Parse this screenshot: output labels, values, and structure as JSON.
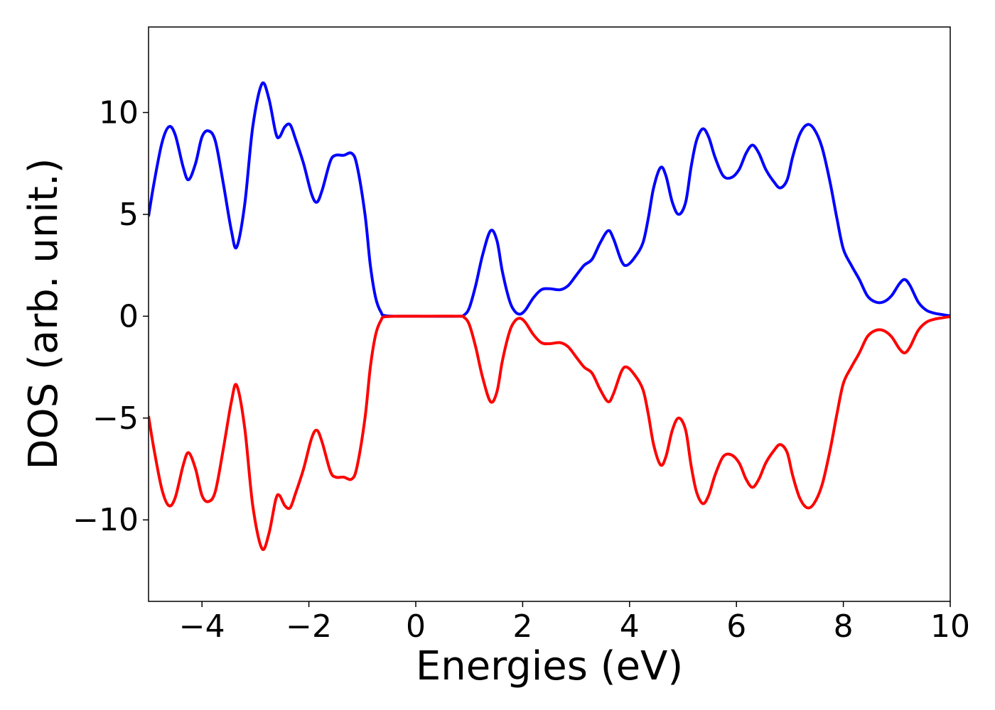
{
  "chart_data": {
    "type": "line",
    "xlabel": "Energies (eV)",
    "ylabel": "DOS (arb. unit.)",
    "xlim": [
      -5,
      10
    ],
    "ylim": [
      -14,
      14.2
    ],
    "xticks": [
      -4,
      -2,
      0,
      2,
      4,
      6,
      8,
      10
    ],
    "xtick_labels": [
      "−4",
      "−2",
      "0",
      "2",
      "4",
      "6",
      "8",
      "10"
    ],
    "yticks": [
      -10,
      -5,
      0,
      5,
      10
    ],
    "ytick_labels": [
      "−10",
      "−5",
      "0",
      "5",
      "10"
    ],
    "grid": false,
    "series": [
      {
        "color": "#0000ff",
        "points": [
          [
            -5.0,
            4.9
          ],
          [
            -4.9,
            6.5
          ],
          [
            -4.75,
            8.5
          ],
          [
            -4.62,
            9.3
          ],
          [
            -4.5,
            8.9
          ],
          [
            -4.35,
            7.3
          ],
          [
            -4.25,
            6.7
          ],
          [
            -4.12,
            7.5
          ],
          [
            -4.0,
            8.8
          ],
          [
            -3.88,
            9.1
          ],
          [
            -3.75,
            8.6
          ],
          [
            -3.6,
            6.5
          ],
          [
            -3.45,
            4.2
          ],
          [
            -3.35,
            3.4
          ],
          [
            -3.2,
            5.5
          ],
          [
            -3.05,
            9.3
          ],
          [
            -2.88,
            11.4
          ],
          [
            -2.75,
            10.7
          ],
          [
            -2.62,
            9.0
          ],
          [
            -2.55,
            8.8
          ],
          [
            -2.45,
            9.3
          ],
          [
            -2.35,
            9.4
          ],
          [
            -2.25,
            8.7
          ],
          [
            -2.1,
            7.5
          ],
          [
            -1.95,
            6.0
          ],
          [
            -1.85,
            5.6
          ],
          [
            -1.75,
            6.2
          ],
          [
            -1.6,
            7.6
          ],
          [
            -1.5,
            7.9
          ],
          [
            -1.35,
            7.9
          ],
          [
            -1.2,
            8.0
          ],
          [
            -1.1,
            7.4
          ],
          [
            -0.95,
            5.0
          ],
          [
            -0.85,
            2.5
          ],
          [
            -0.75,
            0.9
          ],
          [
            -0.65,
            0.2
          ],
          [
            -0.55,
            0.02
          ],
          [
            0.0,
            0.0
          ],
          [
            0.8,
            0.0
          ],
          [
            0.9,
            0.05
          ],
          [
            1.0,
            0.4
          ],
          [
            1.12,
            1.5
          ],
          [
            1.25,
            3.0
          ],
          [
            1.4,
            4.2
          ],
          [
            1.52,
            3.7
          ],
          [
            1.62,
            2.2
          ],
          [
            1.75,
            0.8
          ],
          [
            1.85,
            0.25
          ],
          [
            1.95,
            0.1
          ],
          [
            2.05,
            0.3
          ],
          [
            2.2,
            0.9
          ],
          [
            2.35,
            1.3
          ],
          [
            2.5,
            1.35
          ],
          [
            2.7,
            1.3
          ],
          [
            2.85,
            1.5
          ],
          [
            3.0,
            2.0
          ],
          [
            3.15,
            2.5
          ],
          [
            3.3,
            2.8
          ],
          [
            3.45,
            3.6
          ],
          [
            3.6,
            4.2
          ],
          [
            3.7,
            3.8
          ],
          [
            3.85,
            2.7
          ],
          [
            3.95,
            2.5
          ],
          [
            4.1,
            2.9
          ],
          [
            4.25,
            3.6
          ],
          [
            4.35,
            4.8
          ],
          [
            4.45,
            6.3
          ],
          [
            4.58,
            7.3
          ],
          [
            4.68,
            6.9
          ],
          [
            4.8,
            5.6
          ],
          [
            4.92,
            5.0
          ],
          [
            5.05,
            5.6
          ],
          [
            5.15,
            7.3
          ],
          [
            5.25,
            8.6
          ],
          [
            5.37,
            9.2
          ],
          [
            5.48,
            8.8
          ],
          [
            5.6,
            7.8
          ],
          [
            5.75,
            6.9
          ],
          [
            5.9,
            6.8
          ],
          [
            6.05,
            7.2
          ],
          [
            6.18,
            8.0
          ],
          [
            6.3,
            8.4
          ],
          [
            6.42,
            8.0
          ],
          [
            6.55,
            7.2
          ],
          [
            6.7,
            6.6
          ],
          [
            6.82,
            6.3
          ],
          [
            6.95,
            6.7
          ],
          [
            7.05,
            7.8
          ],
          [
            7.18,
            8.9
          ],
          [
            7.32,
            9.4
          ],
          [
            7.45,
            9.2
          ],
          [
            7.6,
            8.3
          ],
          [
            7.75,
            6.6
          ],
          [
            7.88,
            4.8
          ],
          [
            8.0,
            3.3
          ],
          [
            8.15,
            2.5
          ],
          [
            8.3,
            1.8
          ],
          [
            8.45,
            1.0
          ],
          [
            8.6,
            0.7
          ],
          [
            8.75,
            0.7
          ],
          [
            8.9,
            1.0
          ],
          [
            9.05,
            1.6
          ],
          [
            9.15,
            1.8
          ],
          [
            9.25,
            1.5
          ],
          [
            9.4,
            0.7
          ],
          [
            9.55,
            0.3
          ],
          [
            9.7,
            0.15
          ],
          [
            9.85,
            0.08
          ],
          [
            10.0,
            0.02
          ]
        ]
      },
      {
        "color": "#ff0000",
        "points": [
          [
            -5.0,
            -4.9
          ],
          [
            -4.9,
            -6.5
          ],
          [
            -4.75,
            -8.5
          ],
          [
            -4.62,
            -9.3
          ],
          [
            -4.5,
            -8.9
          ],
          [
            -4.35,
            -7.3
          ],
          [
            -4.25,
            -6.7
          ],
          [
            -4.12,
            -7.5
          ],
          [
            -4.0,
            -8.8
          ],
          [
            -3.88,
            -9.1
          ],
          [
            -3.75,
            -8.6
          ],
          [
            -3.6,
            -6.5
          ],
          [
            -3.45,
            -4.2
          ],
          [
            -3.35,
            -3.4
          ],
          [
            -3.2,
            -5.5
          ],
          [
            -3.05,
            -9.3
          ],
          [
            -2.88,
            -11.4
          ],
          [
            -2.75,
            -10.7
          ],
          [
            -2.62,
            -9.0
          ],
          [
            -2.55,
            -8.8
          ],
          [
            -2.45,
            -9.3
          ],
          [
            -2.35,
            -9.4
          ],
          [
            -2.25,
            -8.7
          ],
          [
            -2.1,
            -7.5
          ],
          [
            -1.95,
            -6.0
          ],
          [
            -1.85,
            -5.6
          ],
          [
            -1.75,
            -6.2
          ],
          [
            -1.6,
            -7.6
          ],
          [
            -1.5,
            -7.9
          ],
          [
            -1.35,
            -7.9
          ],
          [
            -1.2,
            -8.0
          ],
          [
            -1.1,
            -7.4
          ],
          [
            -0.95,
            -5.0
          ],
          [
            -0.85,
            -2.5
          ],
          [
            -0.75,
            -0.9
          ],
          [
            -0.65,
            -0.2
          ],
          [
            -0.55,
            -0.02
          ],
          [
            0.0,
            0.0
          ],
          [
            0.8,
            0.0
          ],
          [
            0.9,
            -0.05
          ],
          [
            1.0,
            -0.4
          ],
          [
            1.12,
            -1.5
          ],
          [
            1.25,
            -3.0
          ],
          [
            1.4,
            -4.2
          ],
          [
            1.52,
            -3.7
          ],
          [
            1.62,
            -2.2
          ],
          [
            1.75,
            -0.8
          ],
          [
            1.85,
            -0.25
          ],
          [
            1.95,
            -0.1
          ],
          [
            2.05,
            -0.3
          ],
          [
            2.2,
            -0.9
          ],
          [
            2.35,
            -1.3
          ],
          [
            2.5,
            -1.35
          ],
          [
            2.7,
            -1.3
          ],
          [
            2.85,
            -1.5
          ],
          [
            3.0,
            -2.0
          ],
          [
            3.15,
            -2.5
          ],
          [
            3.3,
            -2.8
          ],
          [
            3.45,
            -3.6
          ],
          [
            3.6,
            -4.2
          ],
          [
            3.7,
            -3.8
          ],
          [
            3.85,
            -2.7
          ],
          [
            3.95,
            -2.5
          ],
          [
            4.1,
            -2.9
          ],
          [
            4.25,
            -3.6
          ],
          [
            4.35,
            -4.8
          ],
          [
            4.45,
            -6.3
          ],
          [
            4.58,
            -7.3
          ],
          [
            4.68,
            -6.9
          ],
          [
            4.8,
            -5.6
          ],
          [
            4.92,
            -5.0
          ],
          [
            5.05,
            -5.6
          ],
          [
            5.15,
            -7.3
          ],
          [
            5.25,
            -8.6
          ],
          [
            5.37,
            -9.2
          ],
          [
            5.48,
            -8.8
          ],
          [
            5.6,
            -7.8
          ],
          [
            5.75,
            -6.9
          ],
          [
            5.9,
            -6.8
          ],
          [
            6.05,
            -7.2
          ],
          [
            6.18,
            -8.0
          ],
          [
            6.3,
            -8.4
          ],
          [
            6.42,
            -8.0
          ],
          [
            6.55,
            -7.2
          ],
          [
            6.7,
            -6.6
          ],
          [
            6.82,
            -6.3
          ],
          [
            6.95,
            -6.7
          ],
          [
            7.05,
            -7.8
          ],
          [
            7.18,
            -8.9
          ],
          [
            7.32,
            -9.4
          ],
          [
            7.45,
            -9.2
          ],
          [
            7.6,
            -8.3
          ],
          [
            7.75,
            -6.6
          ],
          [
            7.88,
            -4.8
          ],
          [
            8.0,
            -3.3
          ],
          [
            8.15,
            -2.5
          ],
          [
            8.3,
            -1.8
          ],
          [
            8.45,
            -1.0
          ],
          [
            8.6,
            -0.7
          ],
          [
            8.75,
            -0.7
          ],
          [
            8.9,
            -1.0
          ],
          [
            9.05,
            -1.6
          ],
          [
            9.15,
            -1.8
          ],
          [
            9.25,
            -1.5
          ],
          [
            9.4,
            -0.7
          ],
          [
            9.55,
            -0.3
          ],
          [
            9.7,
            -0.15
          ],
          [
            9.85,
            -0.08
          ],
          [
            10.0,
            -0.02
          ]
        ]
      }
    ]
  }
}
